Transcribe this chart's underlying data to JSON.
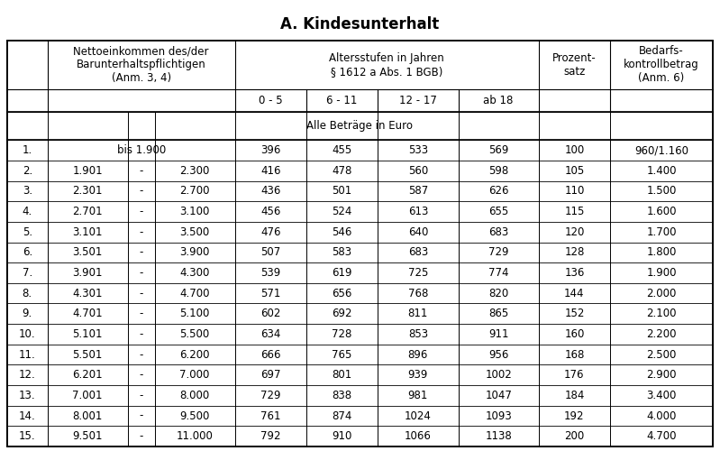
{
  "title": "A. Kindesunterhalt",
  "col_headers": [
    "",
    "Nettoeinkommen des/der\nBarunterhaltspflichtigen\n(Anm. 3, 4)",
    "Altersstufen in Jahren\n§ 1612 a Abs. 1 BGB)",
    "",
    "",
    "",
    "Prozent-\nsatz",
    "Bedarfs-\nkontrollbetrag\n(Anm. 6)"
  ],
  "sub_headers": [
    "",
    "",
    "0 - 5",
    "6 - 11",
    "12 - 17",
    "ab 18",
    "",
    ""
  ],
  "alle_betraege": "Alle Beträge in Euro",
  "rows": [
    [
      "1.",
      "bis 1.900",
      "",
      "396",
      "455",
      "533",
      "569",
      "100",
      "960/1.160"
    ],
    [
      "2.",
      "1.901",
      "-",
      "2.300",
      "416",
      "478",
      "560",
      "598",
      "105",
      "1.400"
    ],
    [
      "3.",
      "2.301",
      "-",
      "2.700",
      "436",
      "501",
      "587",
      "626",
      "110",
      "1.500"
    ],
    [
      "4.",
      "2.701",
      "-",
      "3.100",
      "456",
      "524",
      "613",
      "655",
      "115",
      "1.600"
    ],
    [
      "5.",
      "3.101",
      "-",
      "3.500",
      "476",
      "546",
      "640",
      "683",
      "120",
      "1.700"
    ],
    [
      "6.",
      "3.501",
      "-",
      "3.900",
      "507",
      "583",
      "683",
      "729",
      "128",
      "1.800"
    ],
    [
      "7.",
      "3.901",
      "-",
      "4.300",
      "539",
      "619",
      "725",
      "774",
      "136",
      "1.900"
    ],
    [
      "8.",
      "4.301",
      "-",
      "4.700",
      "571",
      "656",
      "768",
      "820",
      "144",
      "2.000"
    ],
    [
      "9.",
      "4.701",
      "-",
      "5.100",
      "602",
      "692",
      "811",
      "865",
      "152",
      "2.100"
    ],
    [
      "10.",
      "5.101",
      "-",
      "5.500",
      "634",
      "728",
      "853",
      "911",
      "160",
      "2.200"
    ],
    [
      "11.",
      "5.501",
      "-",
      "6.200",
      "666",
      "765",
      "896",
      "956",
      "168",
      "2.500"
    ],
    [
      "12.",
      "6.201",
      "-",
      "7.000",
      "697",
      "801",
      "939",
      "1002",
      "176",
      "2.900"
    ],
    [
      "13.",
      "7.001",
      "-",
      "8.000",
      "729",
      "838",
      "981",
      "1047",
      "184",
      "3.400"
    ],
    [
      "14.",
      "8.001",
      "-",
      "9.500",
      "761",
      "874",
      "1024",
      "1093",
      "192",
      "4.000"
    ],
    [
      "15.",
      "9.501",
      "-",
      "11.000",
      "792",
      "910",
      "1066",
      "1138",
      "200",
      "4.700"
    ]
  ],
  "bg_color": "#ffffff",
  "text_color": "#000000",
  "border_color": "#000000",
  "font_size": 8.5,
  "title_font_size": 12
}
